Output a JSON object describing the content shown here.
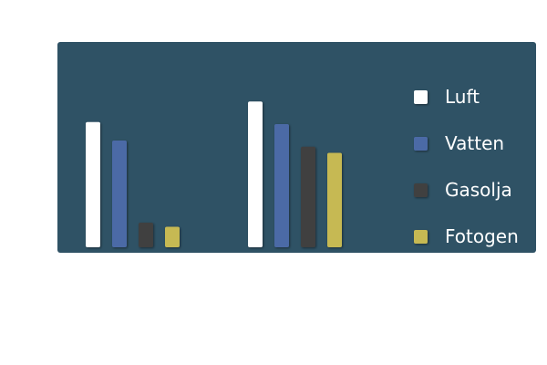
{
  "chart_data": {
    "type": "bar",
    "title": "",
    "xlabel": "",
    "ylabel": "",
    "categories": [
      "",
      ""
    ],
    "ylim": [
      0,
      1
    ],
    "grid": false,
    "legend_position": "right",
    "background_color": "#2f5265",
    "series": [
      {
        "name": "Luft",
        "color": "#ffffff",
        "values": [
          0.61,
          0.71
        ]
      },
      {
        "name": "Vatten",
        "color": "#4b6aa6",
        "values": [
          0.52,
          0.6
        ]
      },
      {
        "name": "Gasolja",
        "color": "#414141",
        "values": [
          0.12,
          0.49
        ]
      },
      {
        "name": "Fotogen",
        "color": "#c6b952",
        "values": [
          0.1,
          0.46
        ]
      }
    ]
  }
}
